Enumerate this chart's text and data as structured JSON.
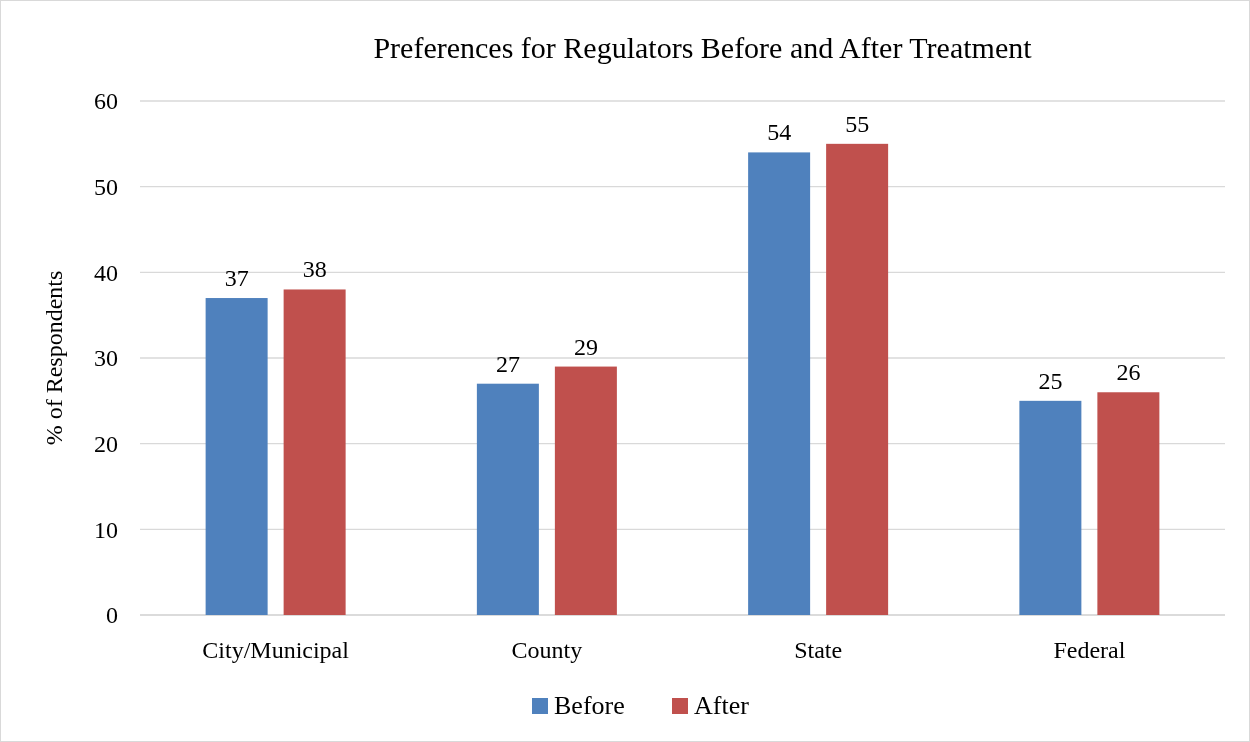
{
  "chart_data": {
    "type": "bar",
    "title": "Preferences for Regulators Before and After Treatment",
    "ylabel": "% of Respondents",
    "categories": [
      "City/Municipal",
      "County",
      "State",
      "Federal"
    ],
    "series": [
      {
        "name": "Before",
        "color": "#4f81bd",
        "values": [
          37,
          27,
          54,
          25
        ]
      },
      {
        "name": "After",
        "color": "#c0504d",
        "values": [
          38,
          29,
          55,
          26
        ]
      }
    ],
    "ylim": [
      0,
      60
    ],
    "yticks": [
      0,
      10,
      20,
      30,
      40,
      50,
      60
    ],
    "grid": "y",
    "legend": "bottom",
    "data_labels": true
  }
}
